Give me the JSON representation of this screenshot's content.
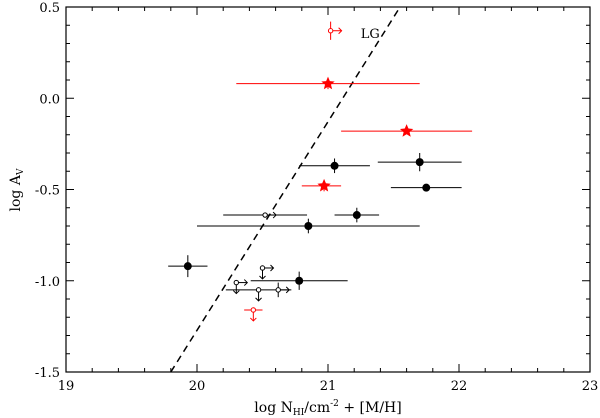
{
  "chart_data": {
    "type": "scatter",
    "title": "",
    "xlabel": "log N",
    "xlabel_sub": "HI",
    "xlabel_rest": "/cm",
    "xlabel_sup": "-2",
    "xlabel_tail": " + [M/H]",
    "ylabel": "log A",
    "ylabel_sub": "V",
    "xlim": [
      19,
      23
    ],
    "ylim": [
      -1.5,
      0.5
    ],
    "xticks": [
      19,
      20,
      21,
      22,
      23
    ],
    "xtick_labels": [
      "19",
      "20",
      "21",
      "22",
      "23"
    ],
    "yticks": [
      -1.5,
      -1.0,
      -0.5,
      0.0,
      0.5
    ],
    "ytick_labels": [
      "-1.5",
      "-1.0",
      "-0.5",
      "0.0",
      "0.5"
    ],
    "annotation": "LG",
    "annotation_pos": [
      21.25,
      0.33
    ],
    "lg_line": {
      "x": [
        19.8,
        21.55
      ],
      "y": [
        -1.5,
        0.5
      ],
      "style": "dashed"
    },
    "series": [
      {
        "name": "black-filled",
        "color": "#000000",
        "marker": "circle-filled",
        "points": [
          {
            "x": 19.93,
            "y": -0.92,
            "xerr": 0.15,
            "yerr": 0.06
          },
          {
            "x": 20.85,
            "y": -0.7,
            "xerr": 0.85,
            "yerr": 0.04
          },
          {
            "x": 20.78,
            "y": -1.0,
            "xerr": 0.37,
            "yerr": 0.05
          },
          {
            "x": 21.05,
            "y": -0.37,
            "xerr": 0.27,
            "yerr": 0.04
          },
          {
            "x": 21.22,
            "y": -0.64,
            "xerr": 0.17,
            "yerr": 0.04
          },
          {
            "x": 21.7,
            "y": -0.35,
            "xerr": 0.32,
            "yerr": 0.05
          },
          {
            "x": 21.75,
            "y": -0.49,
            "xerr": 0.27,
            "yerr": 0.02
          }
        ]
      },
      {
        "name": "red-stars",
        "color": "#ff0000",
        "marker": "star",
        "points": [
          {
            "x": 21.0,
            "y": 0.08,
            "xerr_low": 0.7,
            "xerr_high": 0.7,
            "yerr": 0.03
          },
          {
            "x": 21.6,
            "y": -0.18,
            "xerr_low": 0.5,
            "xerr_high": 0.5,
            "yerr": 0.0
          },
          {
            "x": 20.97,
            "y": -0.48,
            "xerr_low": 0.17,
            "xerr_high": 0.13,
            "yerr": 0.03
          }
        ]
      },
      {
        "name": "black-limits",
        "color": "#000000",
        "marker": "circle-open-limit",
        "points": [
          {
            "x": 20.52,
            "y": -0.64,
            "xerr": 0.32,
            "limits": [
              "right"
            ]
          },
          {
            "x": 20.5,
            "y": -0.93,
            "limits": [
              "right",
              "down"
            ]
          },
          {
            "x": 20.3,
            "y": -1.01,
            "limits": [
              "right",
              "down"
            ]
          },
          {
            "x": 20.47,
            "y": -1.05,
            "xerr": 0.25,
            "limits": [
              "down"
            ]
          },
          {
            "x": 20.62,
            "y": -1.05,
            "yerr": 0.04,
            "limits": [
              "right"
            ]
          }
        ]
      },
      {
        "name": "red-limits",
        "color": "#ff0000",
        "marker": "circle-open-limit",
        "points": [
          {
            "x": 21.02,
            "y": 0.37,
            "yerr": 0.05,
            "limits": [
              "right"
            ]
          },
          {
            "x": 20.43,
            "y": -1.16,
            "xerr": 0.07,
            "limits": [
              "down"
            ]
          }
        ]
      }
    ]
  }
}
